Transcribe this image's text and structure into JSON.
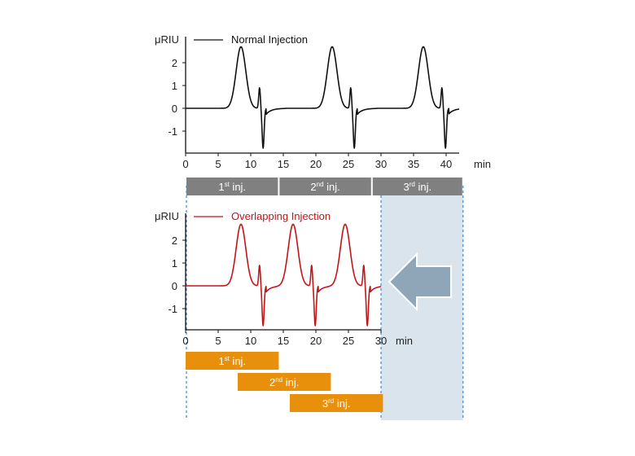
{
  "colors": {
    "normal": "#111111",
    "overlap": "#c0151b",
    "gray_bar": "#808080",
    "orange_bar": "#e8900c",
    "shade": "#d9e4ec",
    "dashed": "#2a6ea8",
    "arrow": "#8fa6b8"
  },
  "chart_data": [
    {
      "type": "line",
      "title": "",
      "ylabel": "μRIU",
      "xlabel": "min",
      "xlim": [
        0,
        42
      ],
      "ylim": [
        -1.8,
        3
      ],
      "xticks": [
        0,
        5,
        10,
        15,
        20,
        25,
        30,
        35,
        40
      ],
      "yticks": [
        -1,
        0,
        1,
        2
      ],
      "legend": "top-left",
      "series": [
        {
          "name": "Normal Injection",
          "color": "#111111",
          "peaks": [
            {
              "peak_x": 8.5,
              "peak_y": 2.7,
              "spike_x": 11.5,
              "spike_up": 0.9,
              "spike_down": -1.75
            },
            {
              "peak_x": 22.5,
              "peak_y": 2.7,
              "spike_x": 25.5,
              "spike_up": 0.9,
              "spike_down": -1.75
            },
            {
              "peak_x": 36.5,
              "peak_y": 2.7,
              "spike_x": 39.5,
              "spike_up": 0.9,
              "spike_down": -1.75
            }
          ]
        }
      ],
      "bands": [
        {
          "sup_prefix": "1",
          "sup": "st",
          "suffix": " inj.",
          "x0": 0,
          "x1": 14.3
        },
        {
          "sup_prefix": "2",
          "sup": "nd",
          "suffix": " inj.",
          "x0": 14.3,
          "x1": 28.6
        },
        {
          "sup_prefix": "3",
          "sup": "rd",
          "suffix": " inj.",
          "x0": 28.6,
          "x1": 42.6
        }
      ]
    },
    {
      "type": "line",
      "title": "",
      "ylabel": "μRIU",
      "xlabel": "min",
      "xlim": [
        0,
        30
      ],
      "ylim": [
        -1.8,
        3
      ],
      "xticks": [
        0,
        5,
        10,
        15,
        20,
        25,
        30
      ],
      "yticks": [
        -1,
        0,
        1,
        2
      ],
      "legend": "top-left",
      "series": [
        {
          "name": "Overlapping Injection",
          "color": "#c0151b",
          "peaks": [
            {
              "peak_x": 8.5,
              "peak_y": 2.7,
              "spike_x": 11.5,
              "spike_up": 0.9,
              "spike_down": -1.75
            },
            {
              "peak_x": 16.5,
              "peak_y": 2.7,
              "spike_x": 19.5,
              "spike_up": 0.9,
              "spike_down": -1.75
            },
            {
              "peak_x": 24.5,
              "peak_y": 2.7,
              "spike_x": 27.5,
              "spike_up": 0.9,
              "spike_down": -1.75
            }
          ]
        }
      ],
      "bands": [
        {
          "sup_prefix": "1",
          "sup": "st",
          "suffix": " inj.",
          "x0": 0,
          "x1": 14.3
        },
        {
          "sup_prefix": "2",
          "sup": "nd",
          "suffix": " inj.",
          "x0": 8,
          "x1": 22.3
        },
        {
          "sup_prefix": "3",
          "sup": "rd",
          "suffix": " inj.",
          "x0": 16,
          "x1": 30.3
        }
      ]
    }
  ]
}
